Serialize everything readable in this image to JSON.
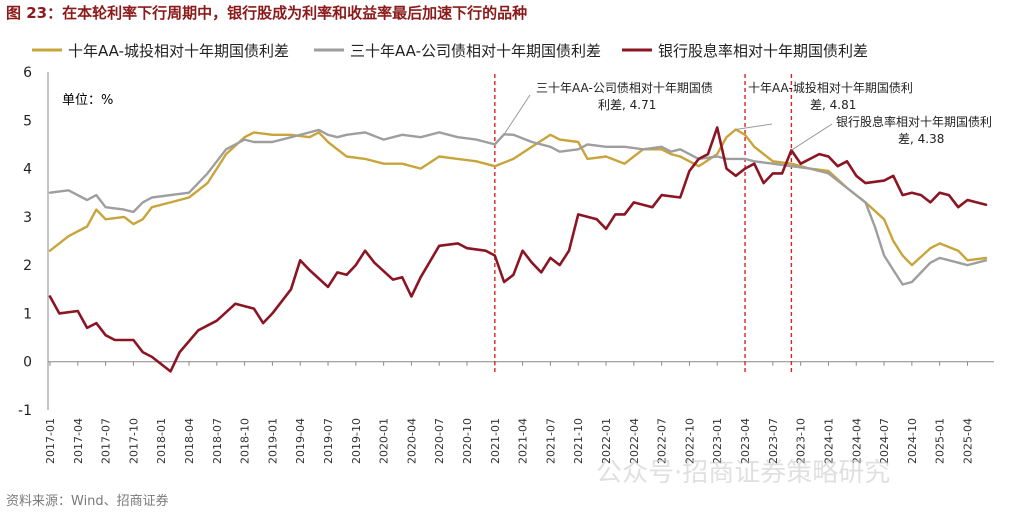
{
  "header": {
    "title": "图 23：在本轮利率下行周期中，银行股成为利率和收益率最后加速下行的品种"
  },
  "footer": {
    "source": "资料来源：Wind、招商证券"
  },
  "watermark": {
    "text": "公众号·招商证券策略研究"
  },
  "chart_data": {
    "type": "line",
    "unit_label": "单位：%",
    "ylim": [
      -1,
      6
    ],
    "yticks": [
      -1,
      0,
      1,
      2,
      3,
      4,
      5,
      6
    ],
    "grid": false,
    "legend_position": "top",
    "x_start": "2017-01",
    "x_end": "2025-06",
    "xtick_labels": [
      "2017-01",
      "2017-04",
      "2017-07",
      "2017-10",
      "2018-01",
      "2018-04",
      "2018-07",
      "2018-10",
      "2019-01",
      "2019-04",
      "2019-07",
      "2019-10",
      "2020-01",
      "2020-04",
      "2020-07",
      "2020-10",
      "2021-01",
      "2021-04",
      "2021-07",
      "2021-10",
      "2022-01",
      "2022-04",
      "2022-07",
      "2022-10",
      "2023-01",
      "2023-04",
      "2023-07",
      "2023-10",
      "2024-01",
      "2024-04",
      "2024-07",
      "2024-10",
      "2025-01",
      "2025-04"
    ],
    "series": [
      {
        "name": "十年AA-城投相对十年期国债利差",
        "color": "#c9a43a",
        "points": [
          [
            "2017-01",
            2.3
          ],
          [
            "2017-03",
            2.6
          ],
          [
            "2017-05",
            2.8
          ],
          [
            "2017-06",
            3.15
          ],
          [
            "2017-07",
            2.95
          ],
          [
            "2017-09",
            3.0
          ],
          [
            "2017-10",
            2.85
          ],
          [
            "2017-11",
            2.95
          ],
          [
            "2017-12",
            3.2
          ],
          [
            "2018-02",
            3.3
          ],
          [
            "2018-04",
            3.4
          ],
          [
            "2018-06",
            3.7
          ],
          [
            "2018-08",
            4.3
          ],
          [
            "2018-10",
            4.65
          ],
          [
            "2018-11",
            4.75
          ],
          [
            "2019-01",
            4.7
          ],
          [
            "2019-03",
            4.7
          ],
          [
            "2019-05",
            4.65
          ],
          [
            "2019-06",
            4.75
          ],
          [
            "2019-07",
            4.55
          ],
          [
            "2019-08",
            4.4
          ],
          [
            "2019-09",
            4.25
          ],
          [
            "2019-11",
            4.2
          ],
          [
            "2020-01",
            4.1
          ],
          [
            "2020-03",
            4.1
          ],
          [
            "2020-05",
            4.0
          ],
          [
            "2020-07",
            4.25
          ],
          [
            "2020-09",
            4.2
          ],
          [
            "2020-11",
            4.15
          ],
          [
            "2021-01",
            4.05
          ],
          [
            "2021-03",
            4.2
          ],
          [
            "2021-05",
            4.45
          ],
          [
            "2021-07",
            4.7
          ],
          [
            "2021-08",
            4.6
          ],
          [
            "2021-10",
            4.55
          ],
          [
            "2021-11",
            4.2
          ],
          [
            "2022-01",
            4.25
          ],
          [
            "2022-03",
            4.1
          ],
          [
            "2022-05",
            4.4
          ],
          [
            "2022-07",
            4.4
          ],
          [
            "2022-08",
            4.3
          ],
          [
            "2022-09",
            4.25
          ],
          [
            "2022-11",
            4.05
          ],
          [
            "2023-01",
            4.3
          ],
          [
            "2023-02",
            4.65
          ],
          [
            "2023-03",
            4.81
          ],
          [
            "2023-04",
            4.7
          ],
          [
            "2023-05",
            4.45
          ],
          [
            "2023-07",
            4.15
          ],
          [
            "2023-09",
            4.1
          ],
          [
            "2023-11",
            4.0
          ],
          [
            "2024-01",
            3.95
          ],
          [
            "2024-03",
            3.6
          ],
          [
            "2024-05",
            3.3
          ],
          [
            "2024-07",
            2.95
          ],
          [
            "2024-08",
            2.5
          ],
          [
            "2024-09",
            2.2
          ],
          [
            "2024-10",
            2.0
          ],
          [
            "2024-12",
            2.35
          ],
          [
            "2025-01",
            2.45
          ],
          [
            "2025-03",
            2.3
          ],
          [
            "2025-04",
            2.1
          ],
          [
            "2025-06",
            2.15
          ]
        ]
      },
      {
        "name": "三十年AA-公司债相对十年期国债利差",
        "color": "#9e9e9e",
        "points": [
          [
            "2017-01",
            3.5
          ],
          [
            "2017-03",
            3.55
          ],
          [
            "2017-05",
            3.35
          ],
          [
            "2017-06",
            3.45
          ],
          [
            "2017-07",
            3.2
          ],
          [
            "2017-09",
            3.15
          ],
          [
            "2017-10",
            3.1
          ],
          [
            "2017-11",
            3.3
          ],
          [
            "2017-12",
            3.4
          ],
          [
            "2018-02",
            3.45
          ],
          [
            "2018-04",
            3.5
          ],
          [
            "2018-06",
            3.9
          ],
          [
            "2018-08",
            4.4
          ],
          [
            "2018-10",
            4.6
          ],
          [
            "2018-11",
            4.55
          ],
          [
            "2019-01",
            4.55
          ],
          [
            "2019-03",
            4.65
          ],
          [
            "2019-05",
            4.75
          ],
          [
            "2019-06",
            4.8
          ],
          [
            "2019-07",
            4.7
          ],
          [
            "2019-08",
            4.65
          ],
          [
            "2019-09",
            4.7
          ],
          [
            "2019-11",
            4.75
          ],
          [
            "2020-01",
            4.6
          ],
          [
            "2020-03",
            4.7
          ],
          [
            "2020-05",
            4.65
          ],
          [
            "2020-07",
            4.75
          ],
          [
            "2020-09",
            4.65
          ],
          [
            "2020-11",
            4.6
          ],
          [
            "2021-01",
            4.5
          ],
          [
            "2021-02",
            4.71
          ],
          [
            "2021-03",
            4.7
          ],
          [
            "2021-05",
            4.55
          ],
          [
            "2021-07",
            4.45
          ],
          [
            "2021-08",
            4.35
          ],
          [
            "2021-10",
            4.4
          ],
          [
            "2021-11",
            4.5
          ],
          [
            "2022-01",
            4.45
          ],
          [
            "2022-03",
            4.45
          ],
          [
            "2022-05",
            4.4
          ],
          [
            "2022-07",
            4.45
          ],
          [
            "2022-08",
            4.35
          ],
          [
            "2022-09",
            4.4
          ],
          [
            "2022-11",
            4.2
          ],
          [
            "2023-01",
            4.25
          ],
          [
            "2023-02",
            4.2
          ],
          [
            "2023-04",
            4.2
          ],
          [
            "2023-05",
            4.15
          ],
          [
            "2023-07",
            4.1
          ],
          [
            "2023-09",
            4.05
          ],
          [
            "2023-11",
            4.0
          ],
          [
            "2024-01",
            3.9
          ],
          [
            "2024-03",
            3.6
          ],
          [
            "2024-05",
            3.3
          ],
          [
            "2024-06",
            2.8
          ],
          [
            "2024-07",
            2.2
          ],
          [
            "2024-08",
            1.9
          ],
          [
            "2024-09",
            1.6
          ],
          [
            "2024-10",
            1.65
          ],
          [
            "2024-12",
            2.05
          ],
          [
            "2025-01",
            2.15
          ],
          [
            "2025-03",
            2.05
          ],
          [
            "2025-04",
            2.0
          ],
          [
            "2025-06",
            2.1
          ]
        ]
      },
      {
        "name": "银行股息率相对十年期国债利差",
        "color": "#8b1522",
        "points": [
          [
            "2017-01",
            1.35
          ],
          [
            "2017-02",
            1.0
          ],
          [
            "2017-04",
            1.05
          ],
          [
            "2017-05",
            0.7
          ],
          [
            "2017-06",
            0.8
          ],
          [
            "2017-07",
            0.55
          ],
          [
            "2017-08",
            0.45
          ],
          [
            "2017-10",
            0.45
          ],
          [
            "2017-11",
            0.2
          ],
          [
            "2017-12",
            0.1
          ],
          [
            "2018-02",
            -0.2
          ],
          [
            "2018-03",
            0.2
          ],
          [
            "2018-05",
            0.65
          ],
          [
            "2018-07",
            0.85
          ],
          [
            "2018-09",
            1.2
          ],
          [
            "2018-11",
            1.1
          ],
          [
            "2018-12",
            0.8
          ],
          [
            "2019-01",
            1.0
          ],
          [
            "2019-03",
            1.5
          ],
          [
            "2019-04",
            2.1
          ],
          [
            "2019-05",
            1.9
          ],
          [
            "2019-07",
            1.55
          ],
          [
            "2019-08",
            1.85
          ],
          [
            "2019-09",
            1.8
          ],
          [
            "2019-10",
            2.0
          ],
          [
            "2019-11",
            2.3
          ],
          [
            "2019-12",
            2.05
          ],
          [
            "2020-02",
            1.7
          ],
          [
            "2020-03",
            1.75
          ],
          [
            "2020-04",
            1.35
          ],
          [
            "2020-05",
            1.75
          ],
          [
            "2020-07",
            2.4
          ],
          [
            "2020-09",
            2.45
          ],
          [
            "2020-10",
            2.35
          ],
          [
            "2020-12",
            2.3
          ],
          [
            "2021-01",
            2.2
          ],
          [
            "2021-02",
            1.65
          ],
          [
            "2021-03",
            1.8
          ],
          [
            "2021-04",
            2.3
          ],
          [
            "2021-05",
            2.05
          ],
          [
            "2021-06",
            1.85
          ],
          [
            "2021-07",
            2.15
          ],
          [
            "2021-08",
            2.0
          ],
          [
            "2021-09",
            2.3
          ],
          [
            "2021-10",
            3.05
          ],
          [
            "2021-12",
            2.95
          ],
          [
            "2022-01",
            2.75
          ],
          [
            "2022-02",
            3.05
          ],
          [
            "2022-03",
            3.05
          ],
          [
            "2022-04",
            3.3
          ],
          [
            "2022-06",
            3.2
          ],
          [
            "2022-07",
            3.45
          ],
          [
            "2022-09",
            3.4
          ],
          [
            "2022-10",
            3.95
          ],
          [
            "2022-11",
            4.2
          ],
          [
            "2022-12",
            4.3
          ],
          [
            "2023-01",
            4.85
          ],
          [
            "2023-02",
            4.0
          ],
          [
            "2023-03",
            3.85
          ],
          [
            "2023-04",
            4.0
          ],
          [
            "2023-05",
            4.1
          ],
          [
            "2023-06",
            3.7
          ],
          [
            "2023-07",
            3.9
          ],
          [
            "2023-08",
            3.9
          ],
          [
            "2023-09",
            4.38
          ],
          [
            "2023-10",
            4.1
          ],
          [
            "2023-12",
            4.3
          ],
          [
            "2024-01",
            4.25
          ],
          [
            "2024-02",
            4.05
          ],
          [
            "2024-03",
            4.15
          ],
          [
            "2024-04",
            3.85
          ],
          [
            "2024-05",
            3.7
          ],
          [
            "2024-07",
            3.75
          ],
          [
            "2024-08",
            3.85
          ],
          [
            "2024-09",
            3.45
          ],
          [
            "2024-10",
            3.5
          ],
          [
            "2024-11",
            3.45
          ],
          [
            "2024-12",
            3.3
          ],
          [
            "2025-01",
            3.5
          ],
          [
            "2025-02",
            3.45
          ],
          [
            "2025-03",
            3.2
          ],
          [
            "2025-04",
            3.35
          ],
          [
            "2025-06",
            3.25
          ]
        ]
      }
    ],
    "reference_lines": [
      "2021-01",
      "2023-04",
      "2023-09"
    ],
    "annotations": [
      {
        "text": [
          "三十年AA-公司债相对十年期国债",
          "利差, 4.71"
        ],
        "point_x": "2021-02",
        "point_y": 4.71
      },
      {
        "text": [
          "十年AA-城投相对十年期国债利",
          "差, 4.81"
        ],
        "point_x": "2023-03",
        "point_y": 4.81
      },
      {
        "text": [
          "银行股息率相对十年期国债利",
          "差, 4.38"
        ],
        "point_x": "2023-09",
        "point_y": 4.38
      }
    ]
  }
}
